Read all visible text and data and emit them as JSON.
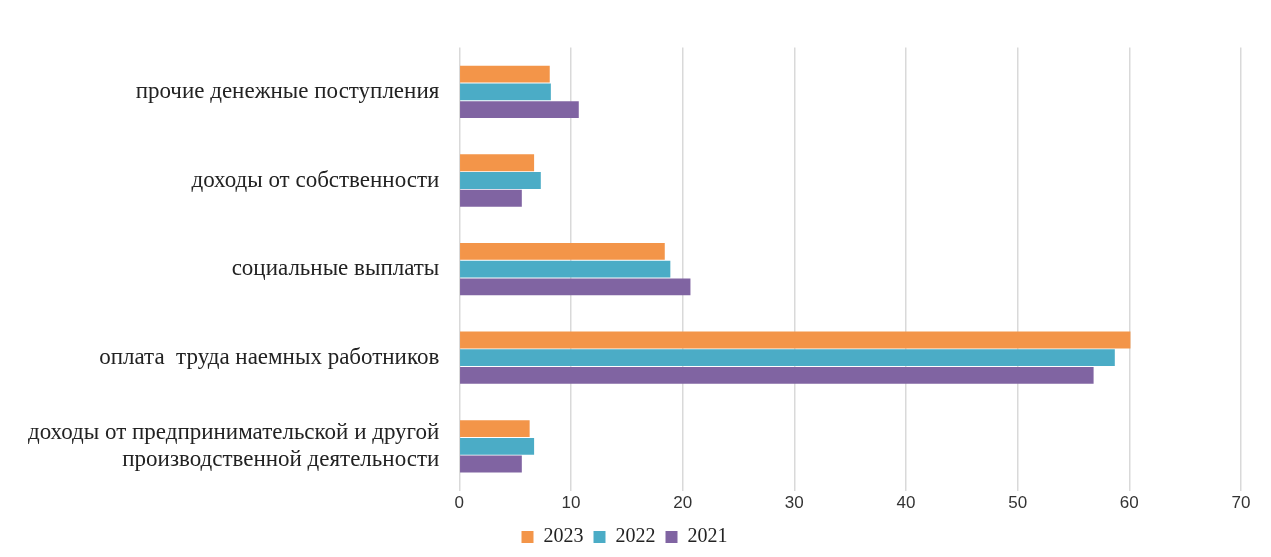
{
  "chart_data": {
    "type": "bar",
    "orientation": "horizontal",
    "categories": [
      "прочие денежные поступления",
      "доходы от собственности",
      "социальные выплаты",
      "оплата  труда наемных работников",
      "доходы от предпринимательской и другой\nпроизводственной деятельности"
    ],
    "series": [
      {
        "name": "2023",
        "color": "#f39549",
        "values": [
          8.1,
          6.7,
          18.4,
          60.1,
          6.3
        ]
      },
      {
        "name": "2022",
        "color": "#4bacc6",
        "values": [
          8.2,
          7.3,
          18.9,
          58.7,
          6.7
        ]
      },
      {
        "name": "2021",
        "color": "#8064a2",
        "values": [
          10.7,
          5.6,
          20.7,
          56.8,
          5.6
        ]
      }
    ],
    "xlim": [
      0,
      70
    ],
    "xticks": [
      0,
      10,
      20,
      30,
      40,
      50,
      60,
      70
    ],
    "grid": "x",
    "legend": "bottom"
  }
}
